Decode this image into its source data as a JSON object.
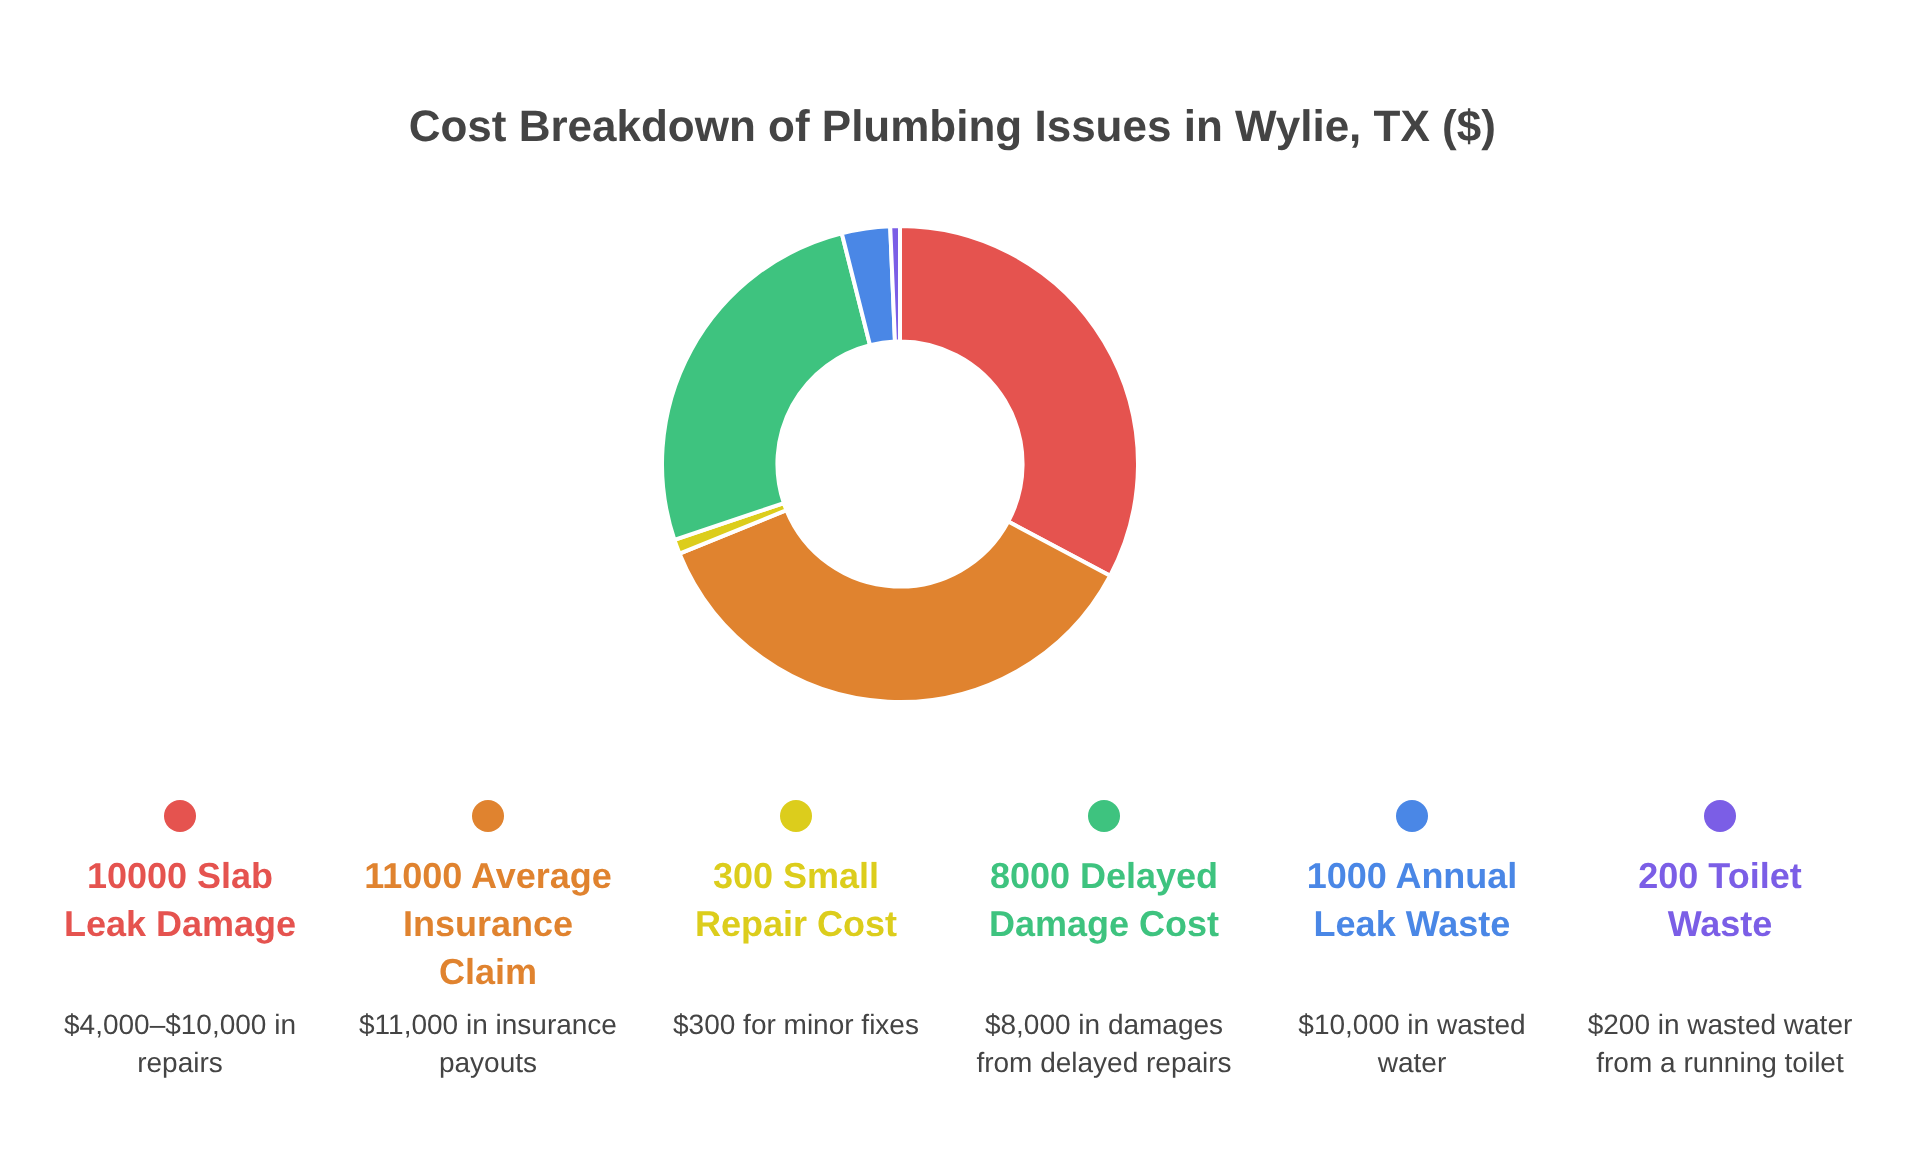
{
  "chart_data": {
    "type": "donut",
    "title": "Cost Breakdown of Plumbing Issues in Wylie, TX ($)",
    "categories": [
      "10000 Slab Leak Damage",
      "11000 Average Insurance Claim",
      "300 Small Repair Cost",
      "8000 Delayed Damage Cost",
      "1000 Annual Leak Waste",
      "200 Toilet Waste"
    ],
    "values": [
      10000,
      11000,
      300,
      8000,
      1000,
      200
    ],
    "colors": [
      "#e5534f",
      "#e0832f",
      "#dccd1c",
      "#3ec37f",
      "#4a87e6",
      "#7b5ee6"
    ],
    "annotations": [
      "$4,000–$10,000 in repairs",
      "$11,000 in insurance payouts",
      "$300 for minor fixes",
      "$8,000 in damages from delayed repairs",
      "$10,000 in wasted water",
      "$200 in wasted water from a running toilet"
    ],
    "legend": "bottom"
  }
}
